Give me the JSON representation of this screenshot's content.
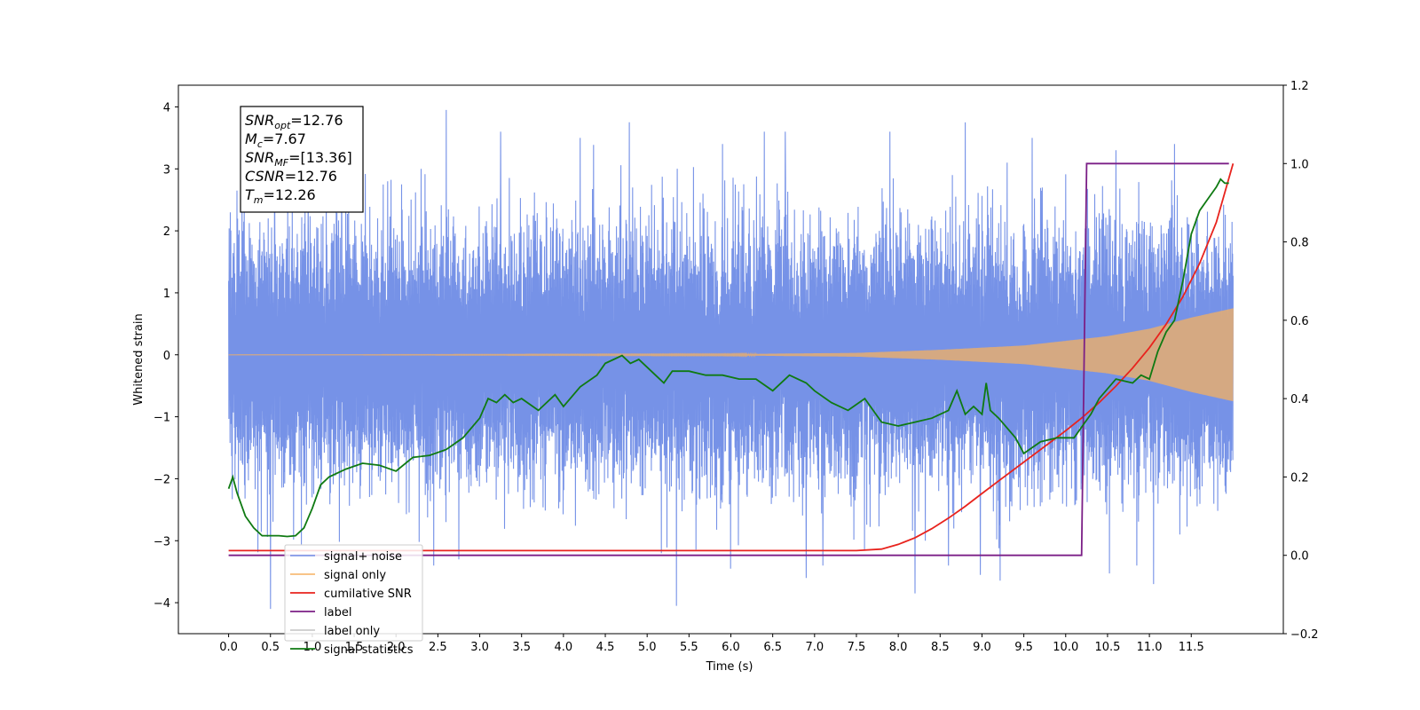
{
  "chart_data": {
    "type": "line",
    "xlabel": "Time (s)",
    "ylabel_left": "Whitened strain",
    "ylabel_right": "",
    "xlim": [
      -0.6,
      12.6
    ],
    "ylim_left": [
      -4.5,
      4.35
    ],
    "ylim_right": [
      -0.2,
      1.2
    ],
    "x_ticks": [
      0.0,
      0.5,
      1.0,
      1.5,
      2.0,
      2.5,
      3.0,
      3.5,
      4.0,
      4.5,
      5.0,
      5.5,
      6.0,
      6.5,
      7.0,
      7.5,
      8.0,
      8.5,
      9.0,
      9.5,
      10.0,
      10.5,
      11.0,
      11.5
    ],
    "x_tick_labels": [
      "0.0",
      "0.5",
      "1.0",
      "1.5",
      "2.0",
      "2.5",
      "3.0",
      "3.5",
      "4.0",
      "4.5",
      "5.0",
      "5.5",
      "6.0",
      "6.5",
      "7.0",
      "7.5",
      "8.0",
      "8.5",
      "9.0",
      "9.5",
      "10.0",
      "10.5",
      "11.0",
      "11.5"
    ],
    "y_left_ticks": [
      4,
      3,
      2,
      1,
      0,
      -1,
      -2,
      -3,
      -4
    ],
    "y_left_tick_labels": [
      "4",
      "3",
      "2",
      "1",
      "0",
      "−1",
      "−2",
      "−3",
      "−4"
    ],
    "y_right_ticks": [
      1.2,
      1.0,
      0.8,
      0.6,
      0.4,
      0.2,
      0.0,
      -0.2
    ],
    "y_right_tick_labels": [
      "1.2",
      "1.0",
      "0.8",
      "0.6",
      "0.4",
      "0.2",
      "0.0",
      "−0.2"
    ],
    "grid": false,
    "legend_position": "lower-left",
    "annotation": {
      "lines": [
        {
          "label": "SNR",
          "sub": "opt",
          "value": "=12.76"
        },
        {
          "label": "M",
          "sub": "c",
          "value": "=7.67"
        },
        {
          "label": "SNR",
          "sub": "MF",
          "value": "=[13.36]"
        },
        {
          "label": "CSNR",
          "sub": "",
          "value": "=12.76"
        },
        {
          "label": "T",
          "sub": "m",
          "value": "=12.26"
        }
      ]
    },
    "series": [
      {
        "name": "signal+ noise",
        "axis": "left",
        "color": "#6f8ce6",
        "description_kind": "noise_band",
        "x_range": [
          0.0,
          12.0
        ],
        "typical_envelope": [
          -1.6,
          1.6
        ],
        "peaks": [
          {
            "x": 0.02,
            "y": 2.3
          },
          {
            "x": 0.1,
            "y": 2.65
          },
          {
            "x": 0.5,
            "y": -4.1
          },
          {
            "x": 0.55,
            "y": 3.0
          },
          {
            "x": 0.95,
            "y": 2.5
          },
          {
            "x": 1.35,
            "y": 2.8
          },
          {
            "x": 1.9,
            "y": 2.8
          },
          {
            "x": 2.3,
            "y": 3.0
          },
          {
            "x": 2.45,
            "y": -3.4
          },
          {
            "x": 2.6,
            "y": 3.95
          },
          {
            "x": 2.75,
            "y": -3.3
          },
          {
            "x": 3.25,
            "y": 3.6
          },
          {
            "x": 4.2,
            "y": 3.5
          },
          {
            "x": 5.35,
            "y": -4.05
          },
          {
            "x": 5.9,
            "y": 3.4
          },
          {
            "x": 6.4,
            "y": 3.6
          },
          {
            "x": 6.65,
            "y": 3.6
          },
          {
            "x": 6.9,
            "y": -3.6
          },
          {
            "x": 7.1,
            "y": -3.4
          },
          {
            "x": 7.9,
            "y": 3.6
          },
          {
            "x": 8.2,
            "y": -3.85
          },
          {
            "x": 8.6,
            "y": -3.4
          },
          {
            "x": 8.8,
            "y": 3.75
          },
          {
            "x": 8.98,
            "y": -3.55
          },
          {
            "x": 9.3,
            "y": 3.1
          },
          {
            "x": 9.6,
            "y": 3.5
          },
          {
            "x": 10.6,
            "y": 3.3
          },
          {
            "x": 10.85,
            "y": -3.4
          },
          {
            "x": 11.05,
            "y": -3.7
          },
          {
            "x": 11.3,
            "y": 3.4
          }
        ]
      },
      {
        "name": "signal only",
        "axis": "left",
        "color": "#f5b060",
        "description_kind": "chirp",
        "x_range": [
          0.0,
          12.0
        ],
        "amplitude_points": [
          [
            0.0,
            0.0
          ],
          [
            6.0,
            0.01
          ],
          [
            7.5,
            0.03
          ],
          [
            8.5,
            0.08
          ],
          [
            9.5,
            0.15
          ],
          [
            10.5,
            0.3
          ],
          [
            11.0,
            0.42
          ],
          [
            11.5,
            0.6
          ],
          [
            12.0,
            0.75
          ]
        ]
      },
      {
        "name": "cumilative SNR",
        "axis": "right",
        "color": "#e8231d",
        "x": [
          0.0,
          7.0,
          7.5,
          7.8,
          8.0,
          8.2,
          8.4,
          8.6,
          8.8,
          9.0,
          9.2,
          9.4,
          9.6,
          9.8,
          10.0,
          10.2,
          10.4,
          10.6,
          10.8,
          11.0,
          11.2,
          11.4,
          11.6,
          11.8,
          12.0
        ],
        "y": [
          0.012,
          0.012,
          0.012,
          0.016,
          0.028,
          0.045,
          0.068,
          0.095,
          0.125,
          0.158,
          0.19,
          0.222,
          0.254,
          0.286,
          0.318,
          0.352,
          0.39,
          0.432,
          0.478,
          0.53,
          0.59,
          0.66,
          0.745,
          0.85,
          1.0
        ]
      },
      {
        "name": "label",
        "axis": "right",
        "color": "#7b1f86",
        "x": [
          0.0,
          10.19,
          10.25,
          11.95
        ],
        "y": [
          0.0,
          0.0,
          1.0,
          1.0
        ]
      },
      {
        "name": "label only",
        "axis": "right",
        "color": "#cccccc",
        "hidden_in_plot": true
      },
      {
        "name": "signal statistics",
        "axis": "right",
        "color": "#0f7a12",
        "x": [
          0.0,
          0.05,
          0.1,
          0.2,
          0.3,
          0.4,
          0.5,
          0.6,
          0.7,
          0.8,
          0.9,
          1.0,
          1.1,
          1.2,
          1.4,
          1.6,
          1.8,
          2.0,
          2.2,
          2.4,
          2.6,
          2.8,
          3.0,
          3.1,
          3.2,
          3.3,
          3.4,
          3.5,
          3.7,
          3.9,
          4.0,
          4.2,
          4.4,
          4.5,
          4.6,
          4.7,
          4.8,
          4.9,
          5.0,
          5.1,
          5.2,
          5.3,
          5.4,
          5.5,
          5.7,
          5.9,
          6.1,
          6.3,
          6.5,
          6.7,
          6.9,
          7.0,
          7.2,
          7.4,
          7.6,
          7.8,
          8.0,
          8.2,
          8.4,
          8.6,
          8.7,
          8.8,
          8.9,
          9.0,
          9.05,
          9.1,
          9.2,
          9.4,
          9.5,
          9.7,
          9.9,
          10.1,
          10.2,
          10.3,
          10.4,
          10.6,
          10.8,
          10.9,
          11.0,
          11.1,
          11.2,
          11.3,
          11.4,
          11.5,
          11.6,
          11.7,
          11.8,
          11.85,
          11.9,
          11.95
        ],
        "y": [
          0.17,
          0.2,
          0.16,
          0.1,
          0.07,
          0.05,
          0.05,
          0.05,
          0.048,
          0.05,
          0.07,
          0.12,
          0.18,
          0.2,
          0.22,
          0.235,
          0.23,
          0.215,
          0.25,
          0.255,
          0.27,
          0.3,
          0.35,
          0.4,
          0.39,
          0.41,
          0.39,
          0.4,
          0.37,
          0.41,
          0.38,
          0.43,
          0.46,
          0.49,
          0.5,
          0.51,
          0.49,
          0.5,
          0.48,
          0.46,
          0.44,
          0.47,
          0.47,
          0.47,
          0.46,
          0.46,
          0.45,
          0.45,
          0.42,
          0.46,
          0.44,
          0.42,
          0.39,
          0.37,
          0.4,
          0.34,
          0.33,
          0.34,
          0.35,
          0.37,
          0.42,
          0.36,
          0.38,
          0.36,
          0.44,
          0.37,
          0.35,
          0.3,
          0.26,
          0.29,
          0.3,
          0.3,
          0.33,
          0.36,
          0.4,
          0.45,
          0.44,
          0.46,
          0.45,
          0.52,
          0.57,
          0.6,
          0.7,
          0.82,
          0.88,
          0.91,
          0.94,
          0.96,
          0.95,
          0.95
        ]
      }
    ]
  }
}
